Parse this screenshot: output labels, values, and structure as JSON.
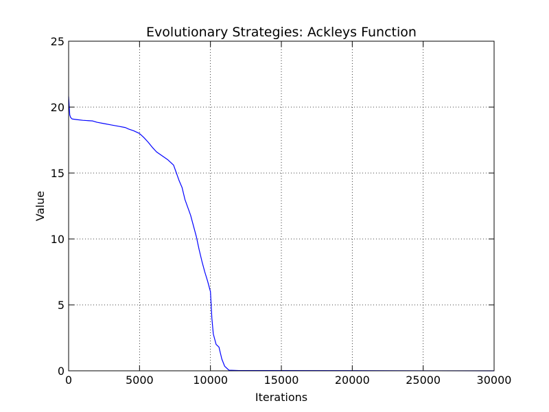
{
  "chart_data": {
    "type": "line",
    "title": "Evolutionary Strategies: Ackleys Function",
    "xlabel": "Iterations",
    "ylabel": "Value",
    "xlim": [
      0,
      30000
    ],
    "ylim": [
      0,
      25
    ],
    "xticks": [
      0,
      5000,
      10000,
      15000,
      20000,
      25000,
      30000
    ],
    "yticks": [
      0,
      5,
      10,
      15,
      20,
      25
    ],
    "grid": true,
    "legend": "none",
    "series": [
      {
        "color": "#0000ff",
        "x": [
          0,
          80,
          150,
          250,
          600,
          1000,
          1700,
          2000,
          2500,
          3000,
          3500,
          4000,
          4200,
          4600,
          5000,
          5300,
          5600,
          5900,
          6200,
          6600,
          7000,
          7400,
          7600,
          7800,
          8000,
          8200,
          8400,
          8600,
          8800,
          9000,
          9200,
          9400,
          9600,
          9800,
          10000,
          10100,
          10200,
          10400,
          10600,
          10800,
          11000,
          11300,
          12000,
          30000
        ],
        "y": [
          20.8,
          19.4,
          19.2,
          19.1,
          19.05,
          19.0,
          18.95,
          18.85,
          18.75,
          18.65,
          18.55,
          18.45,
          18.35,
          18.2,
          18.0,
          17.7,
          17.35,
          16.95,
          16.6,
          16.3,
          16.0,
          15.6,
          15.0,
          14.4,
          13.9,
          13.0,
          12.4,
          11.8,
          11.0,
          10.2,
          9.2,
          8.3,
          7.5,
          6.8,
          6.0,
          4.0,
          2.8,
          2.0,
          1.8,
          0.9,
          0.35,
          0.05,
          0.02,
          0.0
        ]
      }
    ]
  }
}
